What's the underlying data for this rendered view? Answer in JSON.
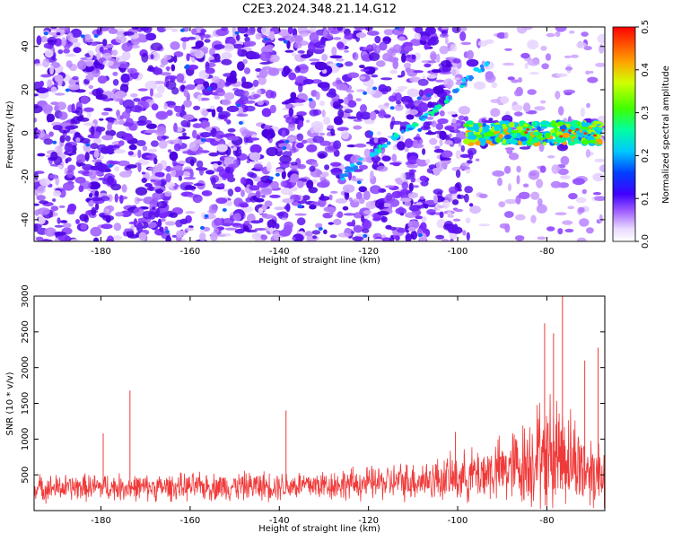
{
  "title": "C2E3.2024.348.21.14.G12",
  "chart_data": [
    {
      "type": "heatmap",
      "xlabel": "Height of straight line (km)",
      "ylabel": "Frequency (Hz)",
      "xlim": [
        -195,
        -67
      ],
      "ylim": [
        -50,
        49
      ],
      "xticks": [
        -180,
        -160,
        -140,
        -120,
        -100,
        -80
      ],
      "yticks": [
        -40,
        -20,
        0,
        20,
        40
      ],
      "colorbar": {
        "label": "Normalized spectral amplitude",
        "range": [
          0,
          0.5
        ],
        "ticks": [
          "0.0",
          "0.1",
          "0.2",
          "0.3",
          "0.4",
          "0.5"
        ]
      },
      "features": [
        {
          "kind": "diagonal_streak",
          "x": [
            -126,
            -123,
            -118,
            -113,
            -108,
            -104,
            -100,
            -96,
            -93
          ],
          "y": [
            -20,
            -15,
            -8,
            0,
            6,
            12,
            21,
            28,
            32
          ]
        },
        {
          "kind": "horizontal_band",
          "x_range": [
            -98,
            -68
          ],
          "y_center": 0,
          "y_halfwidth": 5
        }
      ]
    },
    {
      "type": "line",
      "xlabel": "Height of straight line (km)",
      "ylabel": "SNR (10 * v/v)",
      "xlim": [
        -195,
        -67
      ],
      "ylim": [
        0,
        3000
      ],
      "xticks": [
        -180,
        -160,
        -140,
        -120,
        -100,
        -80
      ],
      "yticks": [
        500,
        1000,
        1500,
        2000,
        2500,
        3000
      ],
      "color": "#f03a3a",
      "envelope": {
        "x": [
          -195,
          -180,
          -170,
          -160,
          -150,
          -140,
          -130,
          -120,
          -110,
          -100,
          -95,
          -90,
          -85,
          -82,
          -80,
          -78,
          -76,
          -74,
          -72,
          -70,
          -67
        ],
        "mean": [
          310,
          330,
          320,
          330,
          340,
          350,
          360,
          380,
          420,
          460,
          520,
          560,
          650,
          780,
          820,
          850,
          800,
          700,
          620,
          560,
          520
        ],
        "spread": [
          220,
          230,
          220,
          230,
          240,
          250,
          260,
          280,
          330,
          400,
          480,
          560,
          750,
          900,
          1000,
          1000,
          900,
          800,
          700,
          650,
          600
        ]
      },
      "spikes": [
        {
          "x": -173.5,
          "y": 1680
        },
        {
          "x": -179.5,
          "y": 1080
        },
        {
          "x": -138.5,
          "y": 1400
        },
        {
          "x": -100.5,
          "y": 1100
        },
        {
          "x": -80.5,
          "y": 2620
        },
        {
          "x": -76.5,
          "y": 3000
        },
        {
          "x": -78.5,
          "y": 2480
        },
        {
          "x": -68.5,
          "y": 2280
        },
        {
          "x": -71.5,
          "y": 2100
        }
      ]
    }
  ]
}
